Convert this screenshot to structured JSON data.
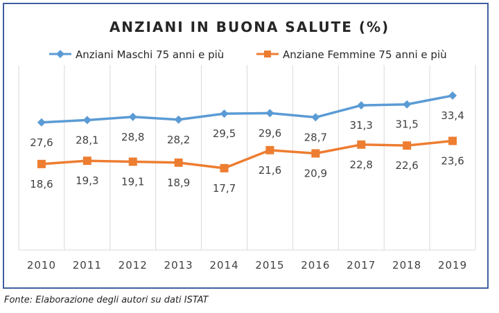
{
  "source": "Fonte: Elaborazione degli autori su dati ISTAT",
  "chart_data": {
    "type": "line",
    "title": "ANZIANI IN BUONA SALUTE (%)",
    "xlabel": "",
    "ylabel": "",
    "categories": [
      "2010",
      "2011",
      "2012",
      "2013",
      "2014",
      "2015",
      "2016",
      "2017",
      "2018",
      "2019"
    ],
    "ylim": [
      0,
      40
    ],
    "grid": "vertical",
    "legend_position": "top",
    "series": [
      {
        "name": "Anziani Maschi 75 anni e più",
        "color": "#5b9bd5",
        "marker": "diamond",
        "values": [
          27.6,
          28.1,
          28.8,
          28.2,
          29.5,
          29.6,
          28.7,
          31.3,
          31.5,
          33.4
        ]
      },
      {
        "name": "Anziane Femmine 75 anni e più",
        "color": "#ed7d31",
        "marker": "square",
        "values": [
          18.6,
          19.3,
          19.1,
          18.9,
          17.7,
          21.6,
          20.9,
          22.8,
          22.6,
          23.6
        ]
      }
    ]
  }
}
